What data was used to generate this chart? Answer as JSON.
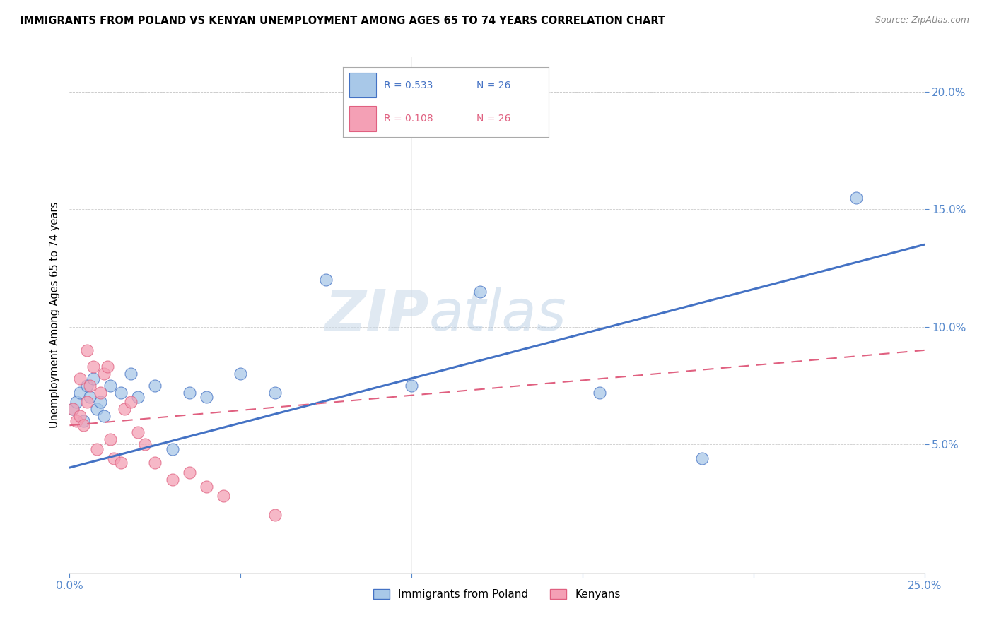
{
  "title": "IMMIGRANTS FROM POLAND VS KENYAN UNEMPLOYMENT AMONG AGES 65 TO 74 YEARS CORRELATION CHART",
  "source": "Source: ZipAtlas.com",
  "ylabel": "Unemployment Among Ages 65 to 74 years",
  "xlim": [
    0.0,
    0.25
  ],
  "ylim": [
    -0.005,
    0.215
  ],
  "xticks": [
    0.0,
    0.05,
    0.1,
    0.15,
    0.2,
    0.25
  ],
  "xticklabels": [
    "0.0%",
    "",
    "",
    "",
    "",
    "25.0%"
  ],
  "yticks": [
    0.05,
    0.1,
    0.15,
    0.2
  ],
  "yticklabels": [
    "5.0%",
    "10.0%",
    "15.0%",
    "20.0%"
  ],
  "color_blue": "#a8c8e8",
  "color_pink": "#f4a0b5",
  "line_blue": "#4472c4",
  "line_pink": "#e06080",
  "watermark_zip": "ZIP",
  "watermark_atlas": "atlas",
  "poland_x": [
    0.001,
    0.002,
    0.003,
    0.004,
    0.005,
    0.006,
    0.007,
    0.008,
    0.009,
    0.01,
    0.012,
    0.015,
    0.018,
    0.02,
    0.025,
    0.03,
    0.035,
    0.04,
    0.05,
    0.06,
    0.075,
    0.1,
    0.12,
    0.155,
    0.185,
    0.23
  ],
  "poland_y": [
    0.065,
    0.068,
    0.072,
    0.06,
    0.075,
    0.07,
    0.078,
    0.065,
    0.068,
    0.062,
    0.075,
    0.072,
    0.08,
    0.07,
    0.075,
    0.048,
    0.072,
    0.07,
    0.08,
    0.072,
    0.12,
    0.075,
    0.115,
    0.072,
    0.044,
    0.155
  ],
  "kenya_x": [
    0.001,
    0.002,
    0.003,
    0.003,
    0.004,
    0.005,
    0.005,
    0.006,
    0.007,
    0.008,
    0.009,
    0.01,
    0.011,
    0.012,
    0.013,
    0.015,
    0.016,
    0.018,
    0.02,
    0.022,
    0.025,
    0.03,
    0.035,
    0.04,
    0.045,
    0.06
  ],
  "kenya_y": [
    0.065,
    0.06,
    0.062,
    0.078,
    0.058,
    0.09,
    0.068,
    0.075,
    0.083,
    0.048,
    0.072,
    0.08,
    0.083,
    0.052,
    0.044,
    0.042,
    0.065,
    0.068,
    0.055,
    0.05,
    0.042,
    0.035,
    0.038,
    0.032,
    0.028,
    0.02
  ],
  "poland_line_x": [
    0.0,
    0.25
  ],
  "poland_line_y": [
    0.04,
    0.135
  ],
  "kenya_line_x": [
    0.0,
    0.25
  ],
  "kenya_line_y": [
    0.058,
    0.09
  ]
}
